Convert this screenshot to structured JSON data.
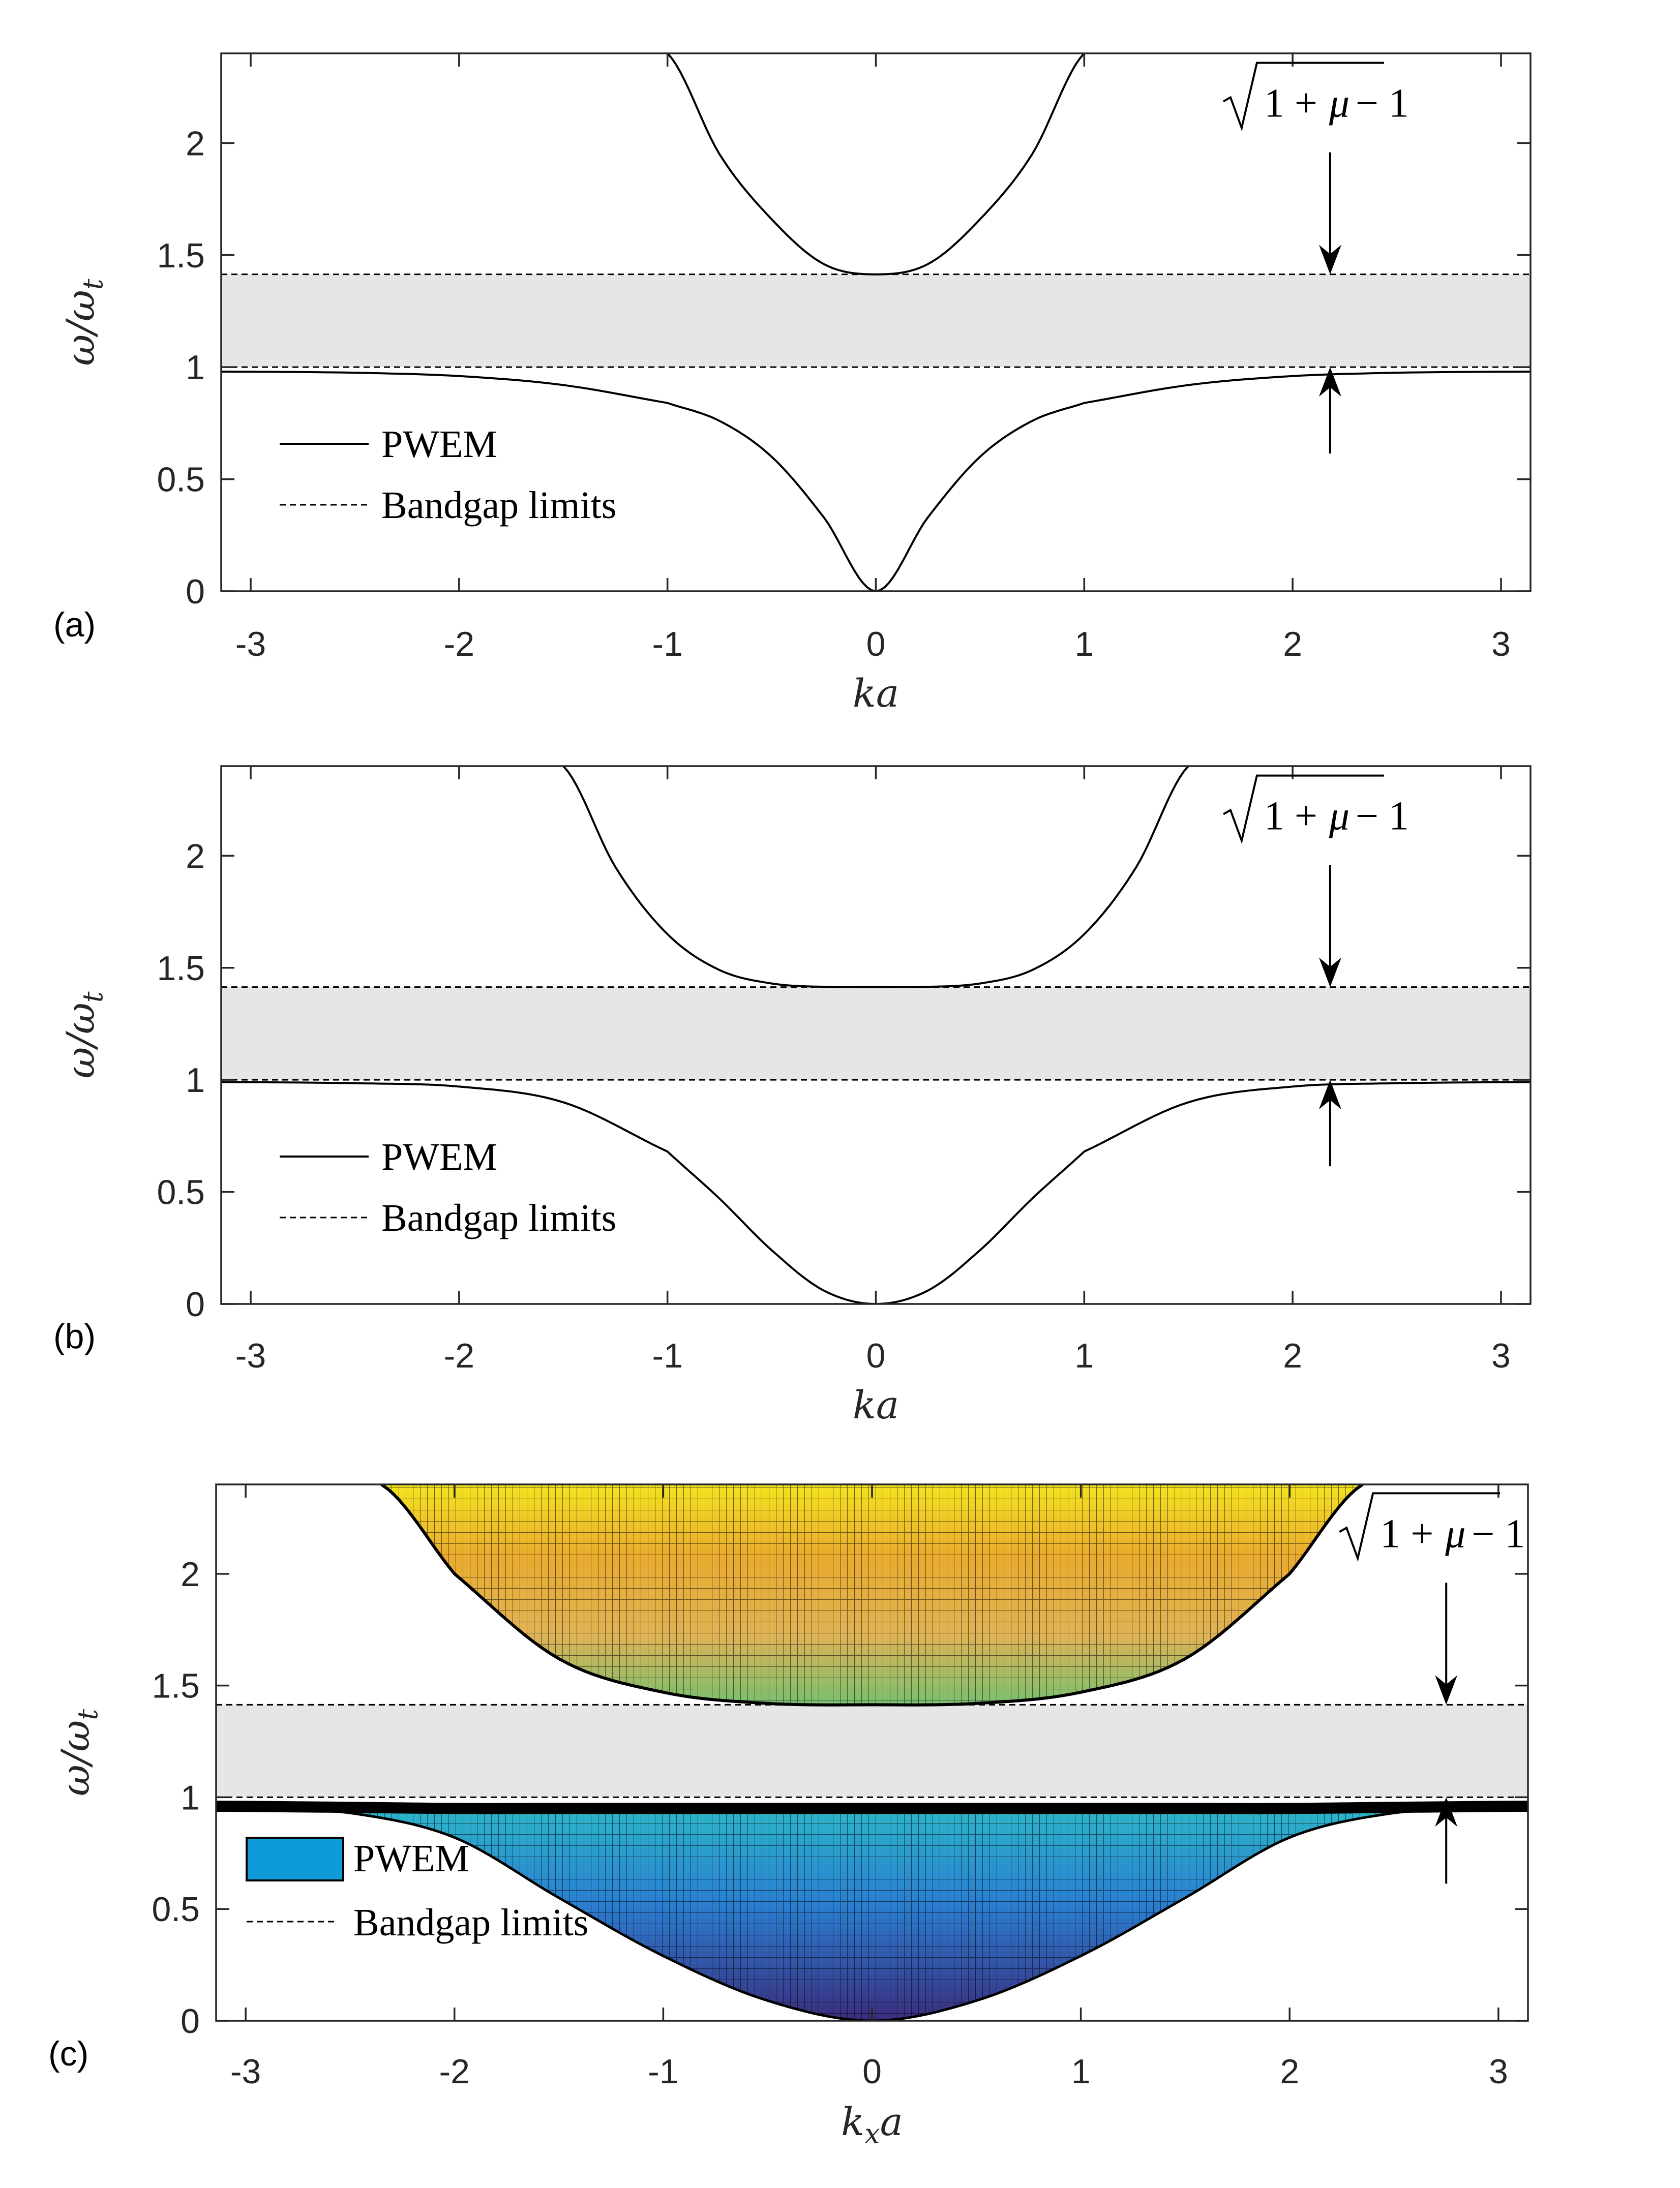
{
  "chart_data": [
    {
      "type": "line",
      "panel_label": "(a)",
      "xlabel": "ka",
      "ylabel": "ω/ωt",
      "xlim": [
        -3.14159,
        3.14159
      ],
      "ylim": [
        0,
        2.4
      ],
      "xticks": [
        "-3",
        "-2",
        "-1",
        "0",
        "1",
        "2",
        "3"
      ],
      "xtick_values": [
        -3,
        -2,
        -1,
        0,
        1,
        2,
        3
      ],
      "yticks": [
        "0",
        "0.5",
        "1",
        "1.5",
        "2"
      ],
      "ytick_values": [
        0,
        0.5,
        1,
        1.5,
        2
      ],
      "bandgap": [
        1.0,
        1.4142
      ],
      "annotation": "√(1+μ) − 1",
      "annotation_x": 2.18,
      "legend": [
        "PWEM",
        "Bandgap limits"
      ],
      "series": [
        {
          "name": "PWEM lower",
          "x": [
            -3.14,
            -2.5,
            -2.0,
            -1.5,
            -1.0,
            -0.75,
            -0.5,
            -0.25,
            0,
            0.25,
            0.5,
            0.75,
            1.0,
            1.5,
            2.0,
            2.5,
            3.14
          ],
          "y": [
            0.98,
            0.975,
            0.96,
            0.92,
            0.84,
            0.76,
            0.6,
            0.33,
            0.0,
            0.33,
            0.6,
            0.76,
            0.84,
            0.92,
            0.96,
            0.975,
            0.98
          ]
        },
        {
          "name": "PWEM upper",
          "x": [
            -1.0,
            -0.75,
            -0.5,
            -0.25,
            0,
            0.25,
            0.5,
            0.75,
            1.0
          ],
          "y": [
            2.4,
            1.95,
            1.66,
            1.46,
            1.414,
            1.46,
            1.66,
            1.95,
            2.4
          ]
        }
      ]
    },
    {
      "type": "line",
      "panel_label": "(b)",
      "xlabel": "ka",
      "ylabel": "ω/ωt",
      "xlim": [
        -3.14159,
        3.14159
      ],
      "ylim": [
        0,
        2.4
      ],
      "xticks": [
        "-3",
        "-2",
        "-1",
        "0",
        "1",
        "2",
        "3"
      ],
      "xtick_values": [
        -3,
        -2,
        -1,
        0,
        1,
        2,
        3
      ],
      "yticks": [
        "0",
        "0.5",
        "1",
        "1.5",
        "2"
      ],
      "ytick_values": [
        0,
        0.5,
        1,
        1.5,
        2
      ],
      "bandgap": [
        1.0,
        1.4142
      ],
      "annotation": "√(1+μ) − 1",
      "annotation_x": 2.18,
      "legend": [
        "PWEM",
        "Bandgap limits"
      ],
      "series": [
        {
          "name": "PWEM lower",
          "x": [
            -3.14,
            -2.5,
            -2.0,
            -1.5,
            -1.0,
            -0.75,
            -0.5,
            -0.25,
            0,
            0.25,
            0.5,
            0.75,
            1.0,
            1.5,
            2.0,
            2.5,
            3.14
          ],
          "y": [
            0.99,
            0.985,
            0.97,
            0.9,
            0.68,
            0.47,
            0.24,
            0.06,
            0.0,
            0.06,
            0.24,
            0.47,
            0.68,
            0.9,
            0.97,
            0.985,
            0.99
          ]
        },
        {
          "name": "PWEM upper",
          "x": [
            -1.5,
            -1.25,
            -1.0,
            -0.75,
            -0.5,
            -0.25,
            0,
            0.25,
            0.5,
            0.75,
            1.0,
            1.25,
            1.5
          ],
          "y": [
            2.4,
            1.95,
            1.65,
            1.49,
            1.43,
            1.415,
            1.414,
            1.415,
            1.43,
            1.49,
            1.65,
            1.95,
            2.4
          ]
        }
      ]
    },
    {
      "type": "surface",
      "panel_label": "(c)",
      "xlabel": "kxa",
      "ylabel": "ω/ωt",
      "xlim": [
        -3.14159,
        3.14159
      ],
      "ylim": [
        0,
        2.4
      ],
      "xticks": [
        "-3",
        "-2",
        "-1",
        "0",
        "1",
        "2",
        "3"
      ],
      "xtick_values": [
        -3,
        -2,
        -1,
        0,
        1,
        2,
        3
      ],
      "yticks": [
        "0",
        "0.5",
        "1",
        "1.5",
        "2"
      ],
      "ytick_values": [
        0,
        0.5,
        1,
        1.5,
        2
      ],
      "bandgap": [
        1.0,
        1.4142
      ],
      "annotation": "√(1+μ) − 1",
      "annotation_x": 2.75,
      "legend": [
        "PWEM",
        "Bandgap limits"
      ],
      "series": [
        {
          "name": "PWEM lower surface",
          "x": [
            -3.14,
            -2.5,
            -2.0,
            -1.5,
            -1.0,
            -0.5,
            0,
            0.5,
            1.0,
            1.5,
            2.0,
            2.5,
            3.14
          ],
          "y_top": [
            0.96,
            0.955,
            0.95,
            0.95,
            0.95,
            0.95,
            0.95,
            0.95,
            0.95,
            0.95,
            0.95,
            0.955,
            0.96
          ],
          "y_bottom": [
            0.96,
            0.93,
            0.82,
            0.55,
            0.29,
            0.09,
            0.0,
            0.09,
            0.29,
            0.55,
            0.82,
            0.93,
            0.96
          ]
        },
        {
          "name": "PWEM upper surface",
          "x": [
            -2.35,
            -2.0,
            -1.5,
            -1.0,
            -0.5,
            0,
            0.5,
            1.0,
            1.5,
            2.0,
            2.35
          ],
          "y": [
            2.4,
            2.0,
            1.62,
            1.47,
            1.42,
            1.414,
            1.42,
            1.47,
            1.62,
            2.0,
            2.4
          ]
        }
      ]
    }
  ]
}
